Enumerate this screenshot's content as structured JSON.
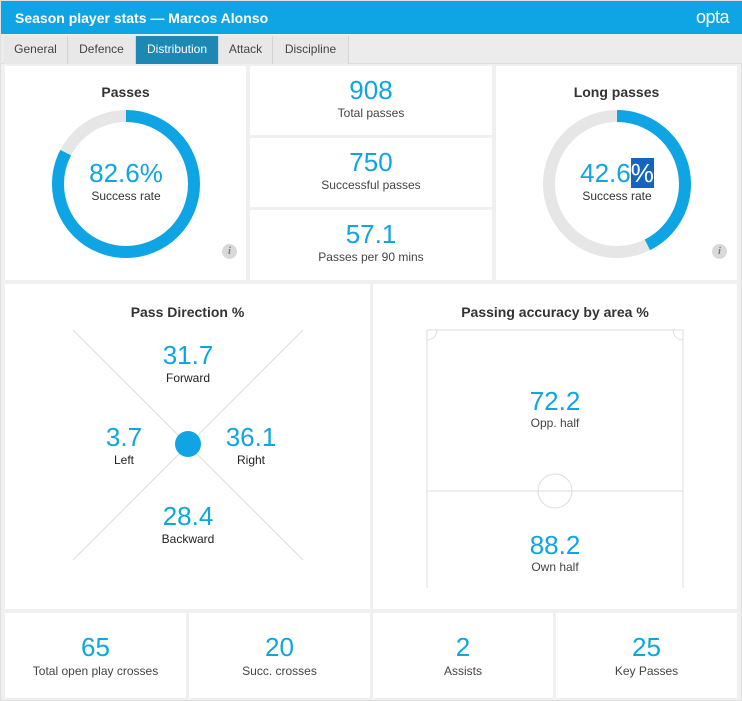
{
  "header": {
    "title": "Season player stats — Marcos Alonso",
    "logo": "opta"
  },
  "tabs": [
    {
      "label": "General"
    },
    {
      "label": "Defence"
    },
    {
      "label": "Distribution"
    },
    {
      "label": "Attack"
    },
    {
      "label": "Discipline"
    }
  ],
  "active_tab": "Distribution",
  "passes": {
    "title": "Passes",
    "value": "82.6%",
    "label": "Success rate",
    "fraction": 0.826,
    "info": "i"
  },
  "totals": [
    {
      "value": "908",
      "label": "Total passes"
    },
    {
      "value": "750",
      "label": "Successful passes"
    },
    {
      "value": "57.1",
      "label": "Passes per 90 mins"
    }
  ],
  "long_passes": {
    "title": "Long passes",
    "value_number": "42.6",
    "value_symbol": "%",
    "label": "Success rate",
    "fraction": 0.426,
    "info": "i"
  },
  "pass_direction": {
    "title": "Pass Direction %",
    "forward": {
      "value": "31.7",
      "label": "Forward"
    },
    "left": {
      "value": "3.7",
      "label": "Left"
    },
    "right": {
      "value": "36.1",
      "label": "Right"
    },
    "backward": {
      "value": "28.4",
      "label": "Backward"
    }
  },
  "accuracy": {
    "title": "Passing accuracy by area %",
    "opp": {
      "value": "72.2",
      "label": "Opp. half"
    },
    "own": {
      "value": "88.2",
      "label": "Own half"
    }
  },
  "bottom_stats": [
    {
      "value": "65",
      "label": "Total open play crosses"
    },
    {
      "value": "20",
      "label": "Succ. crosses"
    },
    {
      "value": "2",
      "label": "Assists"
    },
    {
      "value": "25",
      "label": "Key Passes"
    }
  ],
  "colors": {
    "accent": "#0fa5e4",
    "ring_track": "#e6e6e6",
    "active_tab": "#1b89b4",
    "highlight": "#1565c0"
  }
}
